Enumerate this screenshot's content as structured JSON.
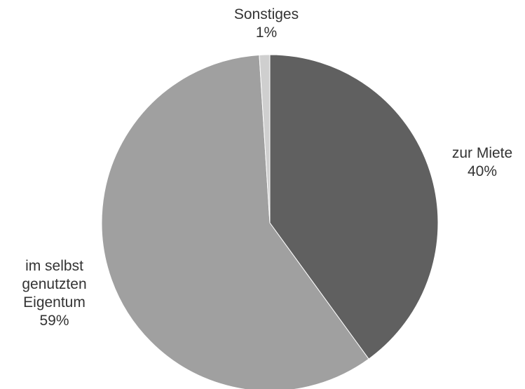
{
  "chart_data": {
    "type": "pie",
    "slices": [
      {
        "label": "zur Miete",
        "value": 40,
        "value_label": "40%",
        "color": "#606060"
      },
      {
        "label_lines": [
          "im selbst",
          "genutzten",
          "Eigentum"
        ],
        "value": 59,
        "value_label": "59%",
        "color": "#a0a0a0"
      },
      {
        "label": "Sonstiges",
        "value": 1,
        "value_label": "1%",
        "color": "#cfcfcf"
      }
    ],
    "start": "12 o'clock",
    "direction": "clockwise",
    "legend": "none"
  }
}
